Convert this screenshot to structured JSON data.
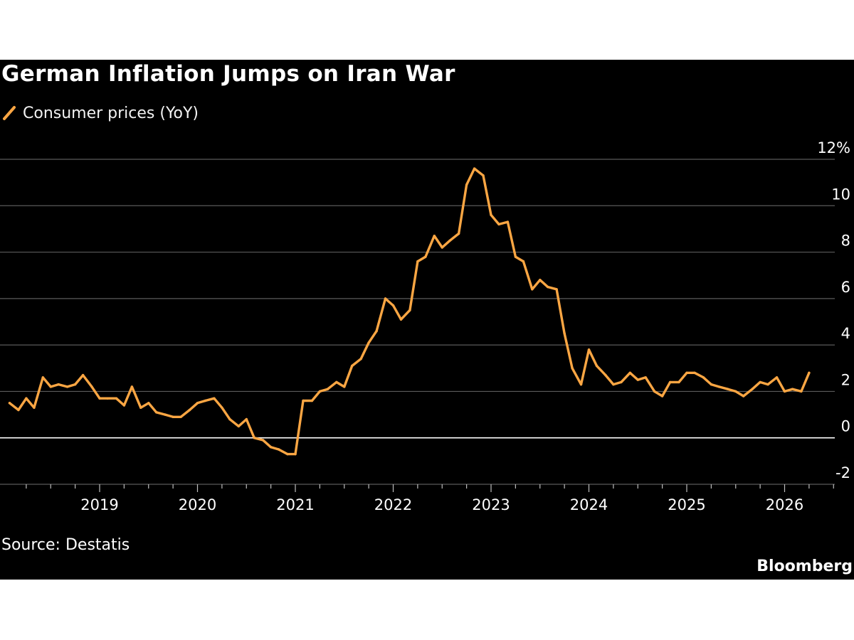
{
  "colors": {
    "background": "#000000",
    "series": "#FBA643",
    "grid": "#5a5a5a",
    "zero_line": "#ffffff",
    "text": "#ffffff"
  },
  "chart_data": {
    "type": "line",
    "title": "German Inflation Jumps on Iran War",
    "legend": "Consumer prices (YoY)",
    "xlabel": "",
    "ylabel": "",
    "ylim": [
      -2,
      12
    ],
    "yticks": [
      "-2",
      "0",
      "2",
      "4",
      "6",
      "8",
      "10",
      "12%"
    ],
    "ytick_values": [
      -2,
      0,
      2,
      4,
      6,
      8,
      10,
      12
    ],
    "xticks": [
      "2019",
      "2020",
      "2021",
      "2022",
      "2023",
      "2024",
      "2025",
      "2026"
    ],
    "xtick_values": [
      2019,
      2020,
      2021,
      2022,
      2023,
      2024,
      2025,
      2026
    ],
    "xlim": [
      2018.0,
      2026.5
    ],
    "grid": true,
    "series": [
      {
        "name": "Consumer prices (YoY)",
        "x": [
          2018.08,
          2018.17,
          2018.25,
          2018.33,
          2018.42,
          2018.5,
          2018.58,
          2018.67,
          2018.75,
          2018.83,
          2018.92,
          2019.0,
          2019.08,
          2019.17,
          2019.25,
          2019.33,
          2019.42,
          2019.5,
          2019.58,
          2019.67,
          2019.75,
          2019.83,
          2019.92,
          2020.0,
          2020.08,
          2020.17,
          2020.25,
          2020.33,
          2020.42,
          2020.5,
          2020.58,
          2020.67,
          2020.75,
          2020.83,
          2020.92,
          2021.0,
          2021.08,
          2021.17,
          2021.25,
          2021.33,
          2021.42,
          2021.5,
          2021.58,
          2021.67,
          2021.75,
          2021.83,
          2021.92,
          2022.0,
          2022.08,
          2022.17,
          2022.25,
          2022.33,
          2022.42,
          2022.5,
          2022.58,
          2022.67,
          2022.75,
          2022.83,
          2022.92,
          2023.0,
          2023.08,
          2023.17,
          2023.25,
          2023.33,
          2023.42,
          2023.5,
          2023.58,
          2023.67,
          2023.75,
          2023.83,
          2023.92,
          2024.0,
          2024.08,
          2024.17,
          2024.25,
          2024.33,
          2024.42,
          2024.5,
          2024.58,
          2024.67,
          2024.75,
          2024.83,
          2024.92,
          2025.0,
          2025.08,
          2025.17,
          2025.25,
          2025.33,
          2025.42,
          2025.5,
          2025.58,
          2025.67,
          2025.75,
          2025.83,
          2025.92,
          2026.0,
          2026.08,
          2026.17,
          2026.25
        ],
        "values": [
          1.5,
          1.2,
          1.7,
          1.3,
          2.6,
          2.2,
          2.3,
          2.2,
          2.3,
          2.7,
          2.2,
          1.7,
          1.7,
          1.7,
          1.4,
          2.2,
          1.3,
          1.5,
          1.1,
          1.0,
          0.9,
          0.9,
          1.2,
          1.5,
          1.6,
          1.7,
          1.3,
          0.8,
          0.5,
          0.8,
          0.0,
          -0.1,
          -0.4,
          -0.5,
          -0.7,
          -0.7,
          1.6,
          1.6,
          2.0,
          2.1,
          2.4,
          2.2,
          3.1,
          3.4,
          4.1,
          4.6,
          6.0,
          5.7,
          5.1,
          5.5,
          7.6,
          7.8,
          8.7,
          8.2,
          8.5,
          8.8,
          10.9,
          11.6,
          11.3,
          9.6,
          9.2,
          9.3,
          7.8,
          7.6,
          6.4,
          6.8,
          6.5,
          6.4,
          4.5,
          3.0,
          2.3,
          3.8,
          3.1,
          2.7,
          2.3,
          2.4,
          2.8,
          2.5,
          2.6,
          2.0,
          1.8,
          2.4,
          2.4,
          2.8,
          2.8,
          2.6,
          2.3,
          2.2,
          2.1,
          2.0,
          1.8,
          2.1,
          2.4,
          2.3,
          2.6,
          2.0,
          2.1,
          2.0,
          2.8
        ]
      }
    ]
  },
  "footer": {
    "source": "Source: Destatis",
    "brand": "Bloomberg"
  }
}
